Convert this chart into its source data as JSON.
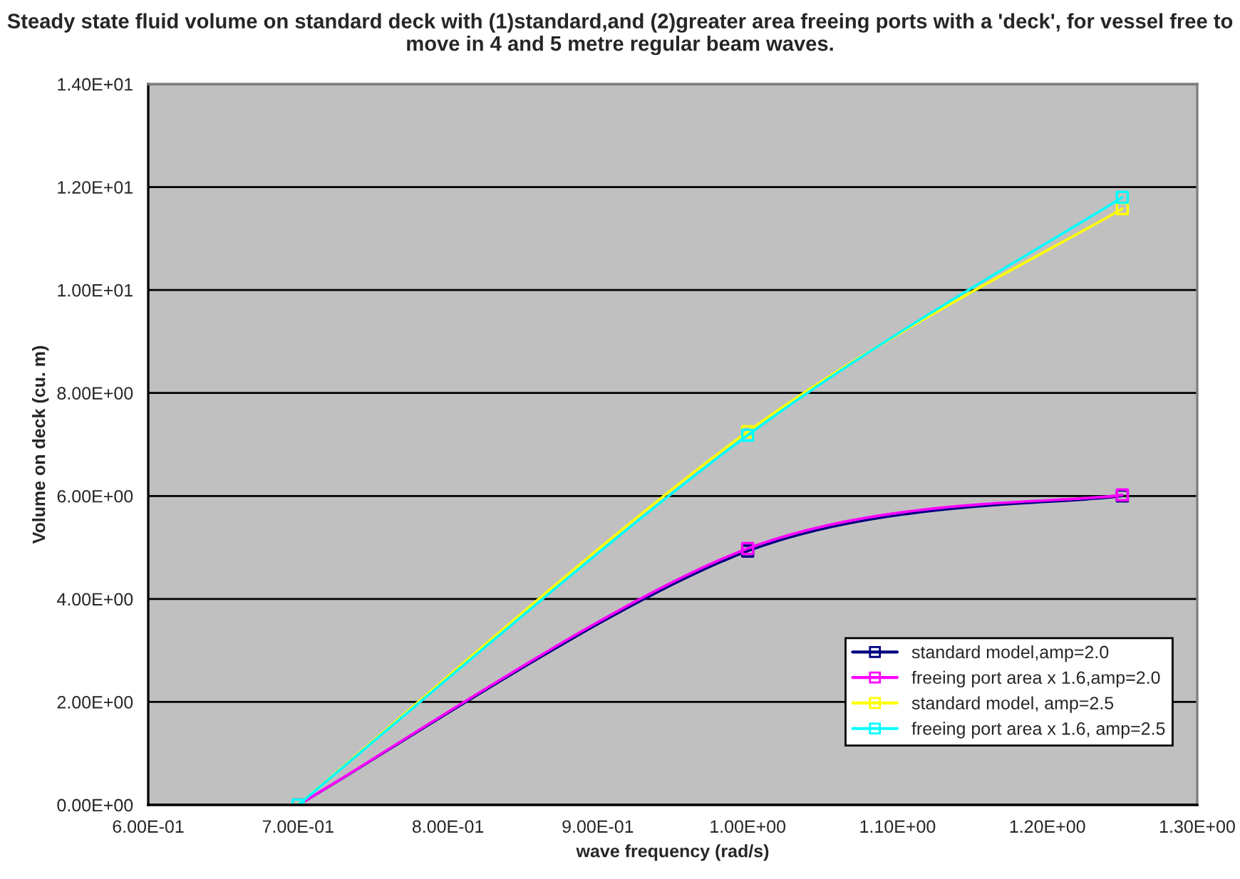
{
  "chart_data": {
    "type": "line",
    "title": "Steady state fluid volume on standard deck with (1)standard,and (2)greater area freeing ports with a 'deck', for vessel free to move in 4 and 5 metre regular beam waves.",
    "xlabel": "wave frequency (rad/s)",
    "ylabel": "Volume on deck (cu. m)",
    "x": [
      0.7,
      1.0,
      1.25
    ],
    "series": [
      {
        "name": "standard model,amp=2.0",
        "color": "#000080",
        "values": [
          0,
          4.93,
          6.0
        ]
      },
      {
        "name": "freeing port area x 1.6,amp=2.0",
        "color": "#ff00ff",
        "values": [
          0,
          4.98,
          6.02
        ]
      },
      {
        "name": "standard model, amp=2.5",
        "color": "#ffff00",
        "values": [
          0,
          7.25,
          11.58
        ]
      },
      {
        "name": "freeing port area x 1.6, amp=2.5",
        "color": "#00ffff",
        "values": [
          0,
          7.18,
          11.8
        ]
      }
    ],
    "xlim": [
      0.6,
      1.3
    ],
    "xticks": [
      {
        "value": 0.6,
        "label": "6.00E-01"
      },
      {
        "value": 0.7,
        "label": "7.00E-01"
      },
      {
        "value": 0.8,
        "label": "8.00E-01"
      },
      {
        "value": 0.9,
        "label": "9.00E-01"
      },
      {
        "value": 1.0,
        "label": "1.00E+00"
      },
      {
        "value": 1.1,
        "label": "1.10E+00"
      },
      {
        "value": 1.2,
        "label": "1.20E+00"
      },
      {
        "value": 1.3,
        "label": "1.30E+00"
      }
    ],
    "ylim": [
      0,
      14
    ],
    "yticks": [
      {
        "value": 0,
        "label": "0.00E+00"
      },
      {
        "value": 2,
        "label": "2.00E+00"
      },
      {
        "value": 4,
        "label": "4.00E+00"
      },
      {
        "value": 6,
        "label": "6.00E+00"
      },
      {
        "value": 8,
        "label": "8.00E+00"
      },
      {
        "value": 10,
        "label": "1.00E+01"
      },
      {
        "value": 12,
        "label": "1.20E+01"
      },
      {
        "value": 14,
        "label": "1.40E+01"
      }
    ],
    "grid": "y",
    "legend": "bottom right",
    "marker": "square",
    "line_style": "solid"
  }
}
